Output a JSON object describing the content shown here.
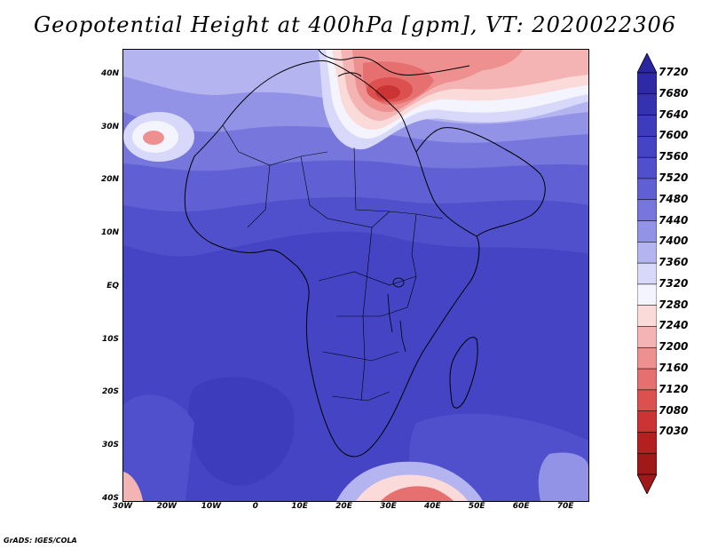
{
  "title": "Geopotential Height at 400hPa [gpm], VT: 2020022306",
  "credit": "GrADS: IGES/COLA",
  "map": {
    "lon_range": [
      -30,
      75
    ],
    "lat_range": [
      -40,
      45
    ],
    "lat_ticks": [
      {
        "value": 40,
        "label": "40N"
      },
      {
        "value": 30,
        "label": "30N"
      },
      {
        "value": 20,
        "label": "20N"
      },
      {
        "value": 10,
        "label": "10N"
      },
      {
        "value": 0,
        "label": "EQ"
      },
      {
        "value": -10,
        "label": "10S"
      },
      {
        "value": -20,
        "label": "20S"
      },
      {
        "value": -30,
        "label": "30S"
      },
      {
        "value": -40,
        "label": "40S"
      }
    ],
    "lon_ticks": [
      {
        "value": -30,
        "label": "30W"
      },
      {
        "value": -20,
        "label": "20W"
      },
      {
        "value": -10,
        "label": "10W"
      },
      {
        "value": 0,
        "label": "0"
      },
      {
        "value": 10,
        "label": "10E"
      },
      {
        "value": 20,
        "label": "20E"
      },
      {
        "value": 30,
        "label": "30E"
      },
      {
        "value": 40,
        "label": "40E"
      },
      {
        "value": 50,
        "label": "50E"
      },
      {
        "value": 60,
        "label": "60E"
      },
      {
        "value": 70,
        "label": "70E"
      }
    ]
  },
  "colorbar": {
    "levels": [
      "7720",
      "7680",
      "7640",
      "7600",
      "7560",
      "7520",
      "7480",
      "7440",
      "7400",
      "7360",
      "7320",
      "7280",
      "7240",
      "7200",
      "7160",
      "7120",
      "7080",
      "7030"
    ],
    "colors": {
      "top": "#2a26a0",
      "bottom": "#a01818",
      "bands": [
        "#2e2aa6",
        "#3532b2",
        "#3d3cbc",
        "#4444c4",
        "#5050cc",
        "#6060d4",
        "#7676dc",
        "#9292e6",
        "#b4b4f0",
        "#d8d8fa",
        "#f4f4ff",
        "#fbdada",
        "#f4b4b4",
        "#ee9090",
        "#e67070",
        "#dc5050",
        "#cc3434",
        "#b42020",
        "#a01818"
      ]
    }
  }
}
